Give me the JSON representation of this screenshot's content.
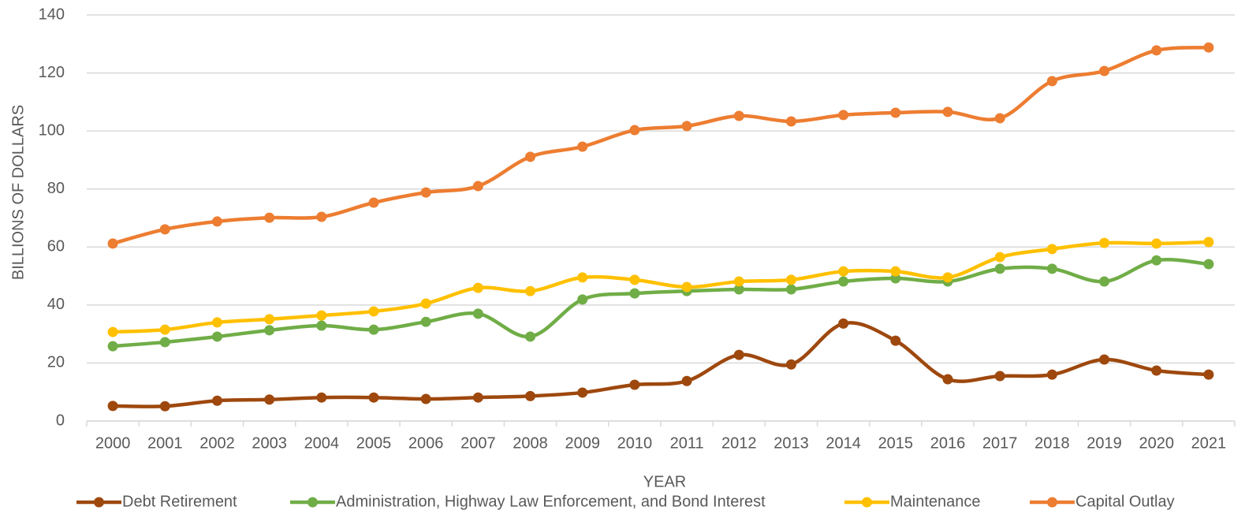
{
  "chart_data": {
    "type": "line",
    "x_label": "YEAR",
    "y_label": "BILLIONS OF DOLLARS",
    "categories": [
      "2000",
      "2001",
      "2002",
      "2003",
      "2004",
      "2005",
      "2006",
      "2007",
      "2008",
      "2009",
      "2010",
      "2011",
      "2012",
      "2013",
      "2014",
      "2015",
      "2016",
      "2017",
      "2018",
      "2019",
      "2020",
      "2021"
    ],
    "ylim": [
      0,
      140
    ],
    "yticks": [
      0,
      20,
      40,
      60,
      80,
      100,
      120,
      140
    ],
    "grid": true,
    "smooth": true,
    "legend": "bottom",
    "series": [
      {
        "name": "Debt Retirement",
        "color": "#9e480e",
        "values": [
          5.2,
          5.1,
          7.0,
          7.4,
          8.1,
          8.1,
          7.6,
          8.1,
          8.6,
          9.8,
          12.5,
          13.8,
          22.8,
          19.5,
          33.6,
          27.7,
          14.4,
          15.5,
          16.0,
          21.2,
          17.4,
          16.0
        ]
      },
      {
        "name": "Administration, Highway Law Enforcement, and Bond Interest",
        "color": "#70ad47",
        "values": [
          25.8,
          27.2,
          29.1,
          31.3,
          32.9,
          31.5,
          34.2,
          37.0,
          29.1,
          41.9,
          44.0,
          44.8,
          45.4,
          45.4,
          48.1,
          49.2,
          48.1,
          52.5,
          52.5,
          48.1,
          55.4,
          54.1
        ]
      },
      {
        "name": "Maintenance",
        "color": "#ffc000",
        "values": [
          30.7,
          31.5,
          34.0,
          35.1,
          36.4,
          37.8,
          40.5,
          45.9,
          44.8,
          49.5,
          48.7,
          46.2,
          48.1,
          48.7,
          51.6,
          51.6,
          49.5,
          56.5,
          59.3,
          61.4,
          61.2,
          61.7
        ]
      },
      {
        "name": "Capital Outlay",
        "color": "#ed7d31",
        "values": [
          61.2,
          66.1,
          68.8,
          70.1,
          70.4,
          75.3,
          78.8,
          81.0,
          91.1,
          94.6,
          100.3,
          101.7,
          105.2,
          103.3,
          105.5,
          106.3,
          106.6,
          104.4,
          117.2,
          120.7,
          127.8,
          128.8
        ]
      }
    ]
  }
}
